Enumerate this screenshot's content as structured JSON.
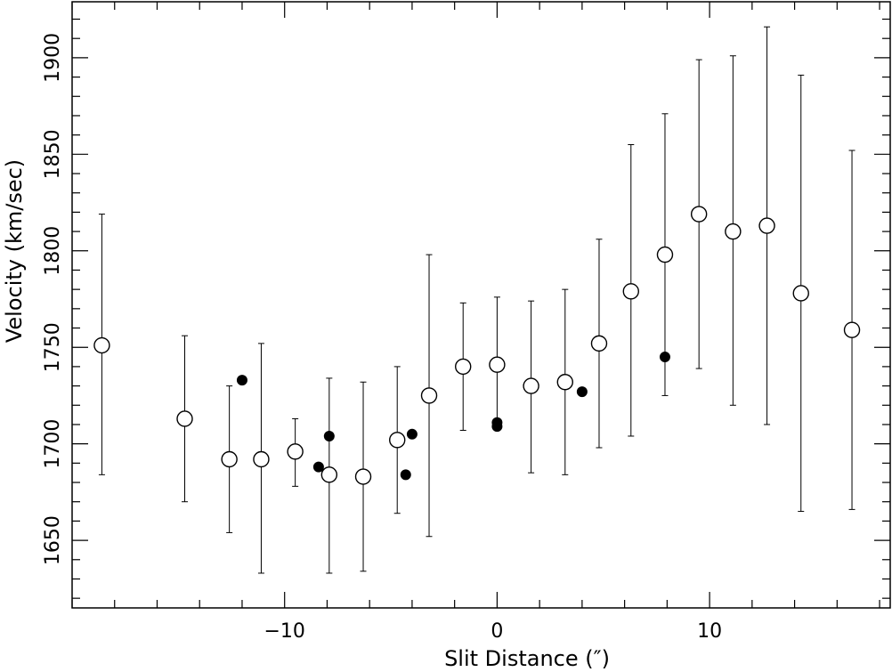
{
  "chart_data": {
    "type": "scatter",
    "xlabel": "Slit Distance (″)",
    "ylabel": "Velocity (km/sec)",
    "xlim": [
      -20,
      18.5
    ],
    "ylim": [
      1615,
      1929
    ],
    "x_ticks": [
      -10,
      0,
      10
    ],
    "y_ticks": [
      1650,
      1700,
      1750,
      1800,
      1850,
      1900
    ],
    "x_minor_step": 2,
    "y_minor_step": 10,
    "grid": false,
    "legend": "none",
    "series": [
      {
        "marker": "open-circle",
        "points": [
          {
            "x": -18.6,
            "y": 1751,
            "err_low": 1684,
            "err_high": 1819
          },
          {
            "x": -14.7,
            "y": 1713,
            "err_low": 1670,
            "err_high": 1756
          },
          {
            "x": -12.6,
            "y": 1692,
            "err_low": 1654,
            "err_high": 1730
          },
          {
            "x": -11.1,
            "y": 1692,
            "err_low": 1633,
            "err_high": 1752
          },
          {
            "x": -9.5,
            "y": 1696,
            "err_low": 1678,
            "err_high": 1713
          },
          {
            "x": -7.9,
            "y": 1684,
            "err_low": 1633,
            "err_high": 1734
          },
          {
            "x": -6.3,
            "y": 1683,
            "err_low": 1634,
            "err_high": 1732
          },
          {
            "x": -4.7,
            "y": 1702,
            "err_low": 1664,
            "err_high": 1740
          },
          {
            "x": -3.2,
            "y": 1725,
            "err_low": 1652,
            "err_high": 1798
          },
          {
            "x": -1.6,
            "y": 1740,
            "err_low": 1707,
            "err_high": 1773
          },
          {
            "x": 0.0,
            "y": 1741,
            "err_low": 1707,
            "err_high": 1776
          },
          {
            "x": 1.6,
            "y": 1730,
            "err_low": 1685,
            "err_high": 1774
          },
          {
            "x": 3.2,
            "y": 1732,
            "err_low": 1684,
            "err_high": 1780
          },
          {
            "x": 4.8,
            "y": 1752,
            "err_low": 1698,
            "err_high": 1806
          },
          {
            "x": 6.3,
            "y": 1779,
            "err_low": 1704,
            "err_high": 1855
          },
          {
            "x": 7.9,
            "y": 1798,
            "err_low": 1725,
            "err_high": 1871
          },
          {
            "x": 9.5,
            "y": 1819,
            "err_low": 1739,
            "err_high": 1899
          },
          {
            "x": 11.1,
            "y": 1810,
            "err_low": 1720,
            "err_high": 1901
          },
          {
            "x": 12.7,
            "y": 1813,
            "err_low": 1710,
            "err_high": 1916
          },
          {
            "x": 14.3,
            "y": 1778,
            "err_low": 1665,
            "err_high": 1891
          },
          {
            "x": 16.7,
            "y": 1759,
            "err_low": 1666,
            "err_high": 1852
          }
        ]
      },
      {
        "marker": "filled-circle",
        "points": [
          {
            "x": -12.0,
            "y": 1733
          },
          {
            "x": -8.4,
            "y": 1688
          },
          {
            "x": -7.9,
            "y": 1704
          },
          {
            "x": -4.3,
            "y": 1684
          },
          {
            "x": -4.0,
            "y": 1705
          },
          {
            "x": 0.0,
            "y": 1711
          },
          {
            "x": 0.0,
            "y": 1709
          },
          {
            "x": 4.0,
            "y": 1727
          },
          {
            "x": 7.9,
            "y": 1745
          }
        ]
      }
    ]
  }
}
